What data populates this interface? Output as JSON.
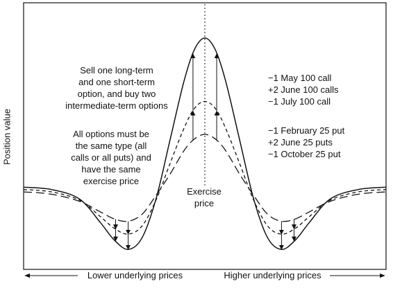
{
  "chart_data": {
    "type": "line",
    "title": "",
    "xlabel": "",
    "ylabel": "Position value",
    "axis_captions": {
      "left": "Lower underlying prices",
      "right": "Higher underlying prices"
    },
    "exercise_label": [
      "Exercise",
      "price"
    ],
    "strategy_text": [
      "Sell one long-term",
      "and one short-term",
      "option, and buy two",
      "intermediate-term options"
    ],
    "rule_text": [
      "All options must be",
      "the same type (all",
      "calls or all puts) and",
      "have the same",
      "exercise price"
    ],
    "call_example": [
      "−1 May 100 call",
      "+2 June 100 calls",
      "−1 July 100 call"
    ],
    "put_example": [
      "−1 February 25 put",
      "+2 June 25 puts",
      "−1 October 25 put"
    ],
    "series": [
      {
        "style": "solid",
        "x": [
          -2.6,
          -2.2,
          -1.8,
          -1.5,
          -1.3,
          -1.1,
          -0.9,
          -0.7,
          -0.5,
          -0.3,
          -0.15,
          0,
          0.15,
          0.3,
          0.5,
          0.7,
          0.9,
          1.1,
          1.3,
          1.5,
          1.8,
          2.2,
          2.6
        ],
        "y": [
          0.05,
          0.03,
          -0.05,
          -0.25,
          -0.4,
          -0.48,
          -0.38,
          -0.05,
          0.45,
          0.95,
          1.22,
          1.32,
          1.22,
          0.95,
          0.45,
          -0.05,
          -0.38,
          -0.48,
          -0.4,
          -0.25,
          -0.05,
          0.03,
          0.05
        ]
      },
      {
        "style": "short-dash",
        "x": [
          -2.6,
          -2.2,
          -1.8,
          -1.5,
          -1.3,
          -1.1,
          -0.9,
          -0.7,
          -0.5,
          -0.3,
          -0.15,
          0,
          0.15,
          0.3,
          0.5,
          0.7,
          0.9,
          1.1,
          1.3,
          1.5,
          1.8,
          2.2,
          2.6
        ],
        "y": [
          0.03,
          0.01,
          -0.06,
          -0.2,
          -0.3,
          -0.35,
          -0.28,
          -0.06,
          0.25,
          0.55,
          0.72,
          0.78,
          0.72,
          0.55,
          0.25,
          -0.06,
          -0.28,
          -0.35,
          -0.3,
          -0.2,
          -0.06,
          0.01,
          0.03
        ]
      },
      {
        "style": "long-dash",
        "x": [
          -2.6,
          -2.2,
          -1.8,
          -1.5,
          -1.3,
          -1.1,
          -0.9,
          -0.7,
          -0.5,
          -0.3,
          -0.15,
          0,
          0.15,
          0.3,
          0.5,
          0.7,
          0.9,
          1.1,
          1.3,
          1.5,
          1.8,
          2.2,
          2.6
        ],
        "y": [
          0.01,
          -0.01,
          -0.07,
          -0.16,
          -0.22,
          -0.24,
          -0.18,
          -0.02,
          0.16,
          0.36,
          0.46,
          0.5,
          0.46,
          0.36,
          0.16,
          -0.02,
          -0.18,
          -0.24,
          -0.22,
          -0.16,
          -0.07,
          -0.01,
          0.01
        ]
      }
    ],
    "xlim": [
      -2.6,
      2.6
    ],
    "ylim": [
      -0.65,
      1.62
    ],
    "grid": false,
    "legend": "none",
    "vertical_marker_x": 0
  }
}
